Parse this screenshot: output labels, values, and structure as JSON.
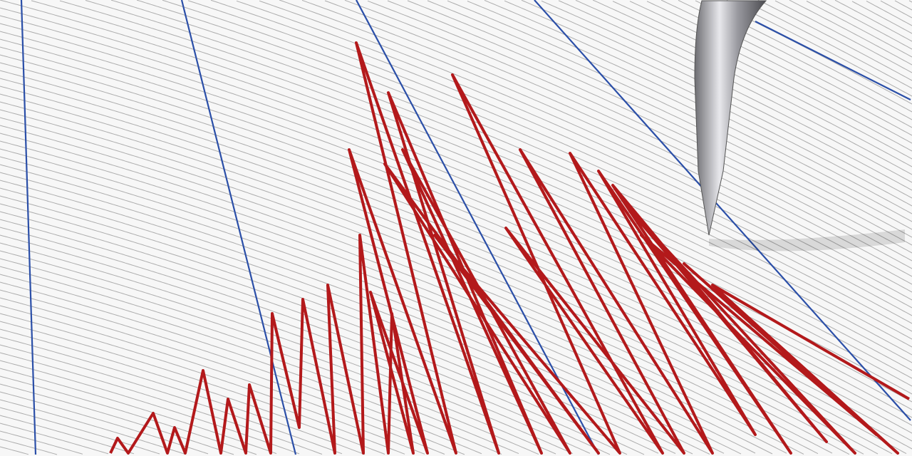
{
  "colors": {
    "paper": "#f7f7f7",
    "grid_line": "#9a9a9a",
    "blue_line": "#2b4fa8",
    "trace": "#b3191b",
    "stylus": "#a9a9ad"
  }
}
